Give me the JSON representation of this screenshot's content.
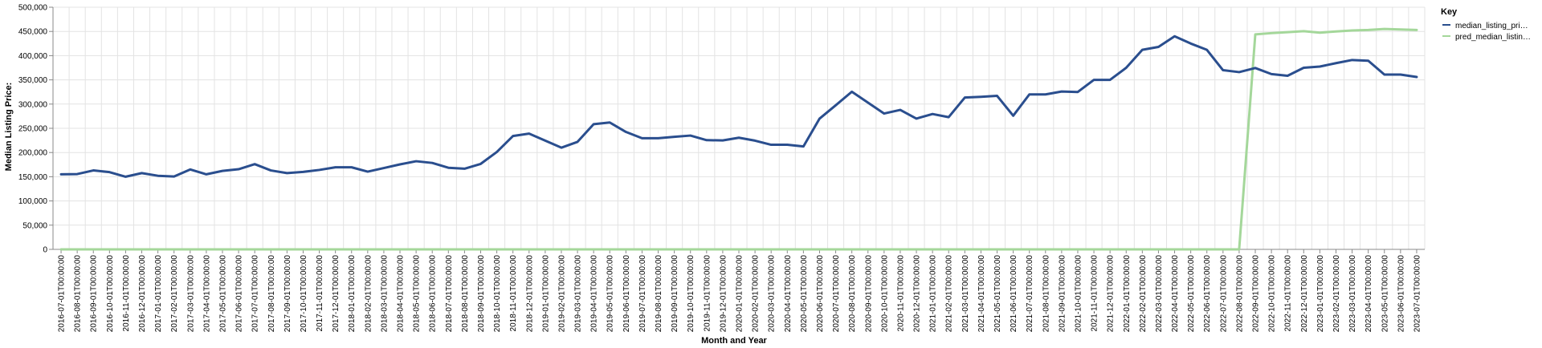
{
  "chart_data": {
    "type": "line",
    "xlabel": "Month and Year",
    "ylabel": "Median Listing Price:",
    "ylim": [
      0,
      500000
    ],
    "y_ticks": [
      "0",
      "50,000",
      "100,000",
      "150,000",
      "200,000",
      "250,000",
      "300,000",
      "350,000",
      "400,000",
      "450,000",
      "500,000"
    ],
    "grid": true,
    "legend": {
      "title": "Key",
      "position": "right"
    },
    "x": [
      "2016-07-01T00:00:00",
      "2016-08-01T00:00:00",
      "2016-09-01T00:00:00",
      "2016-10-01T00:00:00",
      "2016-11-01T00:00:00",
      "2016-12-01T00:00:00",
      "2017-01-01T00:00:00",
      "2017-02-01T00:00:00",
      "2017-03-01T00:00:00",
      "2017-04-01T00:00:00",
      "2017-05-01T00:00:00",
      "2017-06-01T00:00:00",
      "2017-07-01T00:00:00",
      "2017-08-01T00:00:00",
      "2017-09-01T00:00:00",
      "2017-10-01T00:00:00",
      "2017-11-01T00:00:00",
      "2017-12-01T00:00:00",
      "2018-01-01T00:00:00",
      "2018-02-01T00:00:00",
      "2018-03-01T00:00:00",
      "2018-04-01T00:00:00",
      "2018-05-01T00:00:00",
      "2018-06-01T00:00:00",
      "2018-07-01T00:00:00",
      "2018-08-01T00:00:00",
      "2018-09-01T00:00:00",
      "2018-10-01T00:00:00",
      "2018-11-01T00:00:00",
      "2018-12-01T00:00:00",
      "2019-01-01T00:00:00",
      "2019-02-01T00:00:00",
      "2019-03-01T00:00:00",
      "2019-04-01T00:00:00",
      "2019-05-01T00:00:00",
      "2019-06-01T00:00:00",
      "2019-07-01T00:00:00",
      "2019-08-01T00:00:00",
      "2019-09-01T00:00:00",
      "2019-10-01T00:00:00",
      "2019-11-01T00:00:00",
      "2019-12-01T00:00:00",
      "2020-01-01T00:00:00",
      "2020-02-01T00:00:00",
      "2020-03-01T00:00:00",
      "2020-04-01T00:00:00",
      "2020-05-01T00:00:00",
      "2020-06-01T00:00:00",
      "2020-07-01T00:00:00",
      "2020-08-01T00:00:00",
      "2020-09-01T00:00:00",
      "2020-10-01T00:00:00",
      "2020-11-01T00:00:00",
      "2020-12-01T00:00:00",
      "2021-01-01T00:00:00",
      "2021-02-01T00:00:00",
      "2021-03-01T00:00:00",
      "2021-04-01T00:00:00",
      "2021-05-01T00:00:00",
      "2021-06-01T00:00:00",
      "2021-07-01T00:00:00",
      "2021-08-01T00:00:00",
      "2021-09-01T00:00:00",
      "2021-10-01T00:00:00",
      "2021-11-01T00:00:00",
      "2021-12-01T00:00:00",
      "2022-01-01T00:00:00",
      "2022-02-01T00:00:00",
      "2022-03-01T00:00:00",
      "2022-04-01T00:00:00",
      "2022-05-01T00:00:00",
      "2022-06-01T00:00:00",
      "2022-07-01T00:00:00",
      "2022-08-01T00:00:00",
      "2022-09-01T00:00:00",
      "2022-10-01T00:00:00",
      "2022-11-01T00:00:00",
      "2022-12-01T00:00:00",
      "2023-01-01T00:00:00",
      "2023-02-01T00:00:00",
      "2023-03-01T00:00:00",
      "2023-04-01T00:00:00",
      "2023-05-01T00:00:00",
      "2023-06-01T00:00:00",
      "2023-07-01T00:00:00"
    ],
    "series": [
      {
        "name": "median_listing_pri…",
        "color": "#2a4e8e",
        "values": [
          155000,
          155500,
          163000,
          159500,
          150000,
          157500,
          152000,
          150500,
          165000,
          155000,
          162000,
          165500,
          176000,
          163000,
          157500,
          160000,
          164000,
          169500,
          169500,
          160500,
          168000,
          175500,
          182000,
          178500,
          168500,
          166500,
          176500,
          201000,
          234000,
          239000,
          224500,
          210000,
          222000,
          258500,
          262000,
          242500,
          229500,
          229500,
          232500,
          235000,
          225500,
          225000,
          230500,
          224500,
          216000,
          216000,
          212500,
          270000,
          297500,
          325500,
          303000,
          280500,
          288000,
          270000,
          279500,
          273000,
          313500,
          315000,
          317000,
          276000,
          320000,
          320000,
          326000,
          325000,
          350000,
          350000,
          375000,
          412000,
          418000,
          440000,
          425000,
          412000,
          370000,
          366000,
          374500,
          362000,
          358500,
          375000,
          377500,
          384500,
          391000,
          389500,
          361000,
          361000,
          356000
        ]
      },
      {
        "name": "pred_median_listin…",
        "color": "#a4d79a",
        "values": [
          0,
          0,
          0,
          0,
          0,
          0,
          0,
          0,
          0,
          0,
          0,
          0,
          0,
          0,
          0,
          0,
          0,
          0,
          0,
          0,
          0,
          0,
          0,
          0,
          0,
          0,
          0,
          0,
          0,
          0,
          0,
          0,
          0,
          0,
          0,
          0,
          0,
          0,
          0,
          0,
          0,
          0,
          0,
          0,
          0,
          0,
          0,
          0,
          0,
          0,
          0,
          0,
          0,
          0,
          0,
          0,
          0,
          0,
          0,
          0,
          0,
          0,
          0,
          0,
          0,
          0,
          0,
          0,
          0,
          0,
          0,
          0,
          0,
          0,
          444000,
          446500,
          448500,
          450500,
          447500,
          450000,
          452000,
          453000,
          455000,
          454000,
          453000
        ]
      }
    ]
  }
}
